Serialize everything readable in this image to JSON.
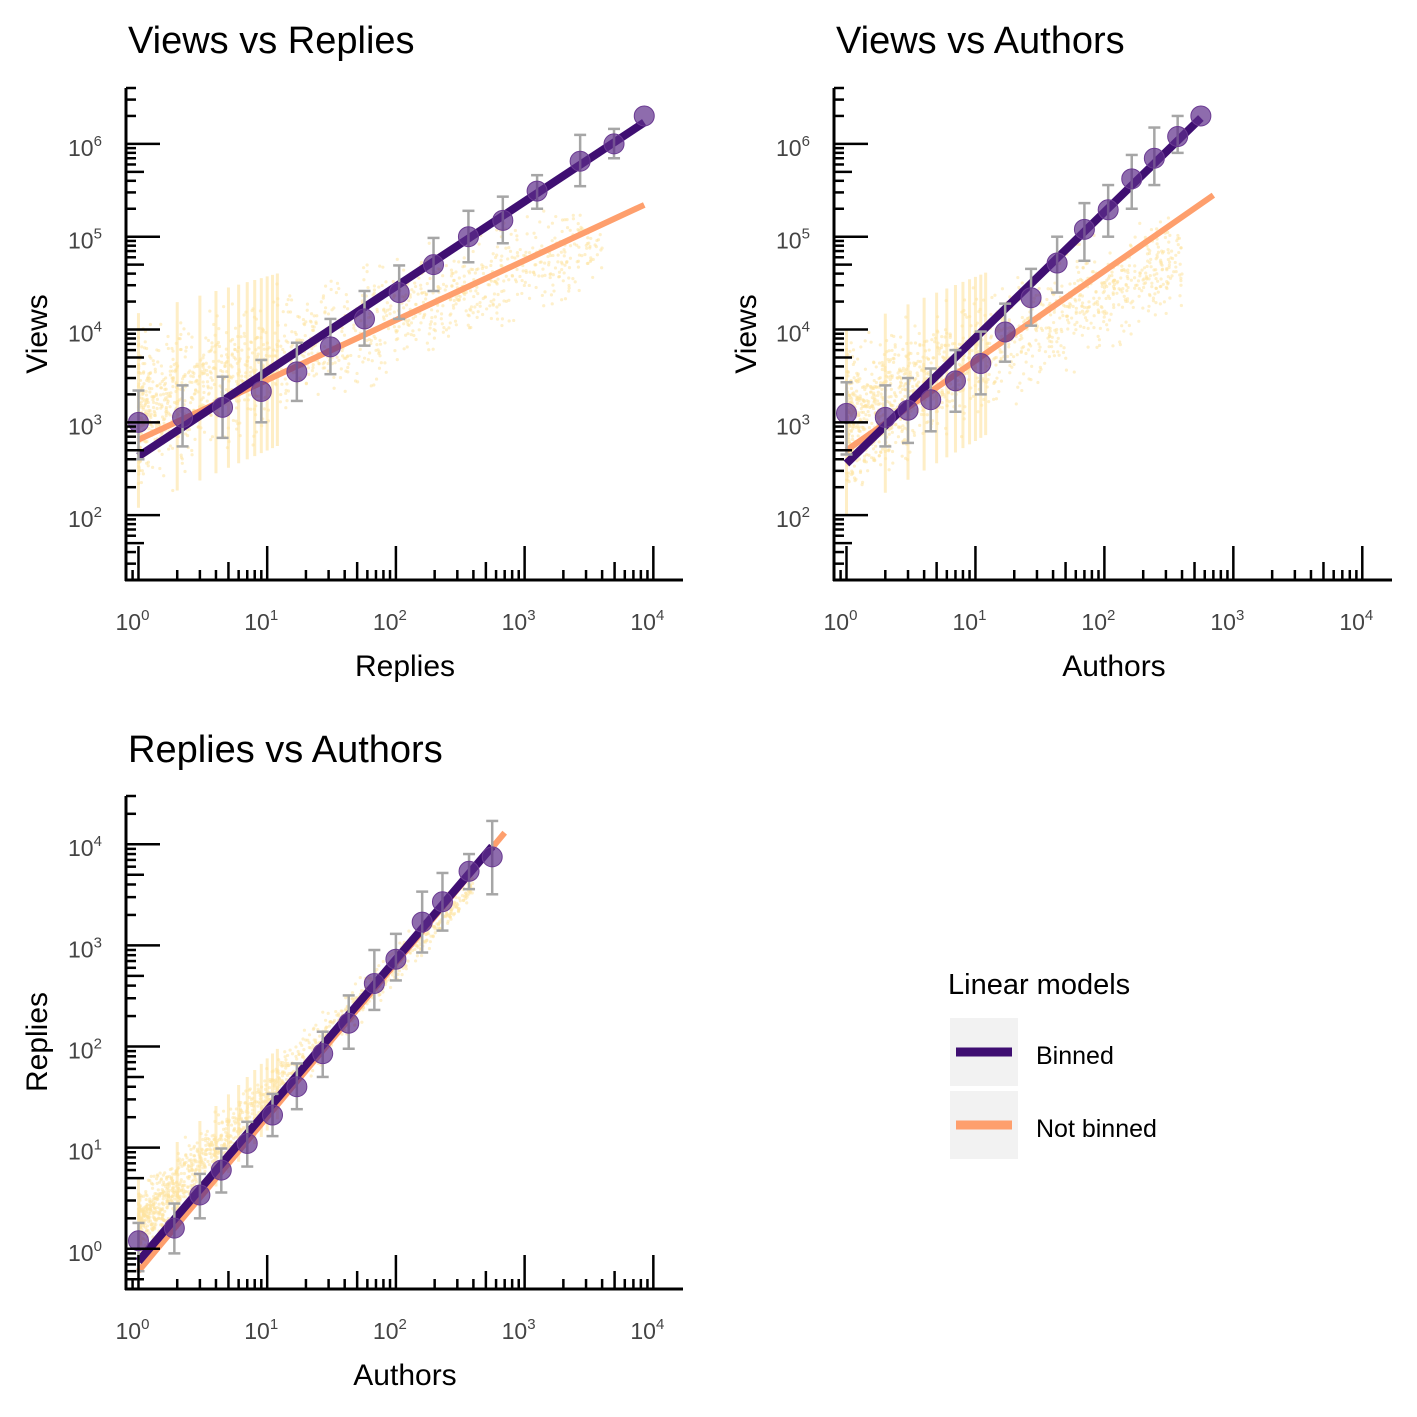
{
  "chart_data": [
    {
      "id": "views-replies",
      "type": "scatter",
      "title": "Views vs Replies",
      "xlabel": "Replies",
      "ylabel": "Views",
      "xscale": "log10",
      "yscale": "log10",
      "xlim": [
        0.8,
        17000
      ],
      "ylim": [
        20,
        4000000
      ],
      "xticks": [
        {
          "base": "10",
          "exp": "0"
        },
        {
          "base": "10",
          "exp": "1"
        },
        {
          "base": "10",
          "exp": "2"
        },
        {
          "base": "10",
          "exp": "3"
        },
        {
          "base": "10",
          "exp": "4"
        }
      ],
      "yticks": [
        {
          "base": "10",
          "exp": "2"
        },
        {
          "base": "10",
          "exp": "3"
        },
        {
          "base": "10",
          "exp": "4"
        },
        {
          "base": "10",
          "exp": "5"
        },
        {
          "base": "10",
          "exp": "6"
        }
      ],
      "binned_points": [
        {
          "x": 1,
          "y": 1000,
          "lo": 400,
          "hi": 2200
        },
        {
          "x": 2.2,
          "y": 1130,
          "lo": 550,
          "hi": 2500
        },
        {
          "x": 4.5,
          "y": 1450,
          "lo": 680,
          "hi": 3100
        },
        {
          "x": 9,
          "y": 2150,
          "lo": 1000,
          "hi": 4700
        },
        {
          "x": 17,
          "y": 3500,
          "lo": 1700,
          "hi": 7200
        },
        {
          "x": 31,
          "y": 6500,
          "lo": 3300,
          "hi": 13000
        },
        {
          "x": 57,
          "y": 13000,
          "lo": 6700,
          "hi": 26000
        },
        {
          "x": 106,
          "y": 25000,
          "lo": 13000,
          "hi": 49000
        },
        {
          "x": 196,
          "y": 50000,
          "lo": 26000,
          "hi": 97000
        },
        {
          "x": 366,
          "y": 100000,
          "lo": 53000,
          "hi": 190000
        },
        {
          "x": 677,
          "y": 150000,
          "lo": 85000,
          "hi": 270000
        },
        {
          "x": 1250,
          "y": 310000,
          "lo": 200000,
          "hi": 460000
        },
        {
          "x": 2700,
          "y": 650000,
          "lo": 350000,
          "hi": 1250000
        },
        {
          "x": 4950,
          "y": 1000000,
          "lo": 700000,
          "hi": 1450000
        },
        {
          "x": 8500,
          "y": 2000000,
          "lo": 2000000,
          "hi": 2000000
        }
      ],
      "series": [
        {
          "name": "Binned",
          "color": "#3f0f72",
          "x": [
            1,
            8500
          ],
          "y": [
            430,
            1700000
          ]
        },
        {
          "name": "Not binned",
          "color": "#fe9f6d",
          "x": [
            1,
            8500
          ],
          "y": [
            650,
            220000
          ]
        }
      ],
      "raw_cloud": {
        "color": "#fde3a0",
        "x": [
          1,
          4000
        ],
        "y_lo": [
          120,
          20000
        ],
        "y_hi": [
          15000,
          400000
        ]
      }
    },
    {
      "id": "views-authors",
      "type": "scatter",
      "title": "Views vs Authors",
      "xlabel": "Authors",
      "ylabel": "Views",
      "xscale": "log10",
      "yscale": "log10",
      "xlim": [
        0.8,
        17000
      ],
      "ylim": [
        20,
        4000000
      ],
      "xticks": [
        {
          "base": "10",
          "exp": "0"
        },
        {
          "base": "10",
          "exp": "1"
        },
        {
          "base": "10",
          "exp": "2"
        },
        {
          "base": "10",
          "exp": "3"
        },
        {
          "base": "10",
          "exp": "4"
        }
      ],
      "yticks": [
        {
          "base": "10",
          "exp": "2"
        },
        {
          "base": "10",
          "exp": "3"
        },
        {
          "base": "10",
          "exp": "4"
        },
        {
          "base": "10",
          "exp": "5"
        },
        {
          "base": "10",
          "exp": "6"
        }
      ],
      "binned_points": [
        {
          "x": 1,
          "y": 1250,
          "lo": 450,
          "hi": 2700
        },
        {
          "x": 2,
          "y": 1130,
          "lo": 550,
          "hi": 2500
        },
        {
          "x": 3,
          "y": 1350,
          "lo": 600,
          "hi": 3000
        },
        {
          "x": 4.5,
          "y": 1750,
          "lo": 800,
          "hi": 3800
        },
        {
          "x": 7,
          "y": 2800,
          "lo": 1300,
          "hi": 6000
        },
        {
          "x": 11,
          "y": 4300,
          "lo": 2000,
          "hi": 9500
        },
        {
          "x": 17,
          "y": 9400,
          "lo": 4500,
          "hi": 19000
        },
        {
          "x": 27,
          "y": 22000,
          "lo": 11000,
          "hi": 45000
        },
        {
          "x": 43,
          "y": 52000,
          "lo": 25000,
          "hi": 100000
        },
        {
          "x": 70,
          "y": 120000,
          "lo": 55000,
          "hi": 230000
        },
        {
          "x": 107,
          "y": 195000,
          "lo": 100000,
          "hi": 360000
        },
        {
          "x": 163,
          "y": 420000,
          "lo": 200000,
          "hi": 760000
        },
        {
          "x": 244,
          "y": 700000,
          "lo": 360000,
          "hi": 1500000
        },
        {
          "x": 370,
          "y": 1200000,
          "lo": 800000,
          "hi": 2000000
        },
        {
          "x": 560,
          "y": 2000000,
          "lo": 2000000,
          "hi": 2000000
        }
      ],
      "series": [
        {
          "name": "Binned",
          "color": "#3f0f72",
          "x": [
            1,
            560
          ],
          "y": [
            360,
            1900000
          ]
        },
        {
          "name": "Not binned",
          "color": "#fe9f6d",
          "x": [
            1,
            700
          ],
          "y": [
            500,
            280000
          ]
        }
      ],
      "raw_cloud": {
        "color": "#fde3a0",
        "x": [
          1,
          400
        ],
        "y_lo": [
          100,
          12000
        ],
        "y_hi": [
          10000,
          300000
        ]
      }
    },
    {
      "id": "replies-authors",
      "type": "scatter",
      "title": "Replies vs Authors",
      "xlabel": "Authors",
      "ylabel": "Replies",
      "xscale": "log10",
      "yscale": "log10",
      "xlim": [
        0.8,
        17000
      ],
      "ylim": [
        0.4,
        30000
      ],
      "xticks": [
        {
          "base": "10",
          "exp": "0"
        },
        {
          "base": "10",
          "exp": "1"
        },
        {
          "base": "10",
          "exp": "2"
        },
        {
          "base": "10",
          "exp": "3"
        },
        {
          "base": "10",
          "exp": "4"
        }
      ],
      "yticks": [
        {
          "base": "10",
          "exp": "0"
        },
        {
          "base": "10",
          "exp": "1"
        },
        {
          "base": "10",
          "exp": "2"
        },
        {
          "base": "10",
          "exp": "3"
        },
        {
          "base": "10",
          "exp": "4"
        }
      ],
      "binned_points": [
        {
          "x": 1,
          "y": 1.2,
          "lo": 0.6,
          "hi": 1.8
        },
        {
          "x": 1.9,
          "y": 1.6,
          "lo": 0.9,
          "hi": 2.8
        },
        {
          "x": 3,
          "y": 3.4,
          "lo": 2.0,
          "hi": 5.5
        },
        {
          "x": 4.4,
          "y": 6.0,
          "lo": 3.6,
          "hi": 9.8
        },
        {
          "x": 7,
          "y": 11,
          "lo": 6.5,
          "hi": 18
        },
        {
          "x": 11,
          "y": 21,
          "lo": 13,
          "hi": 34
        },
        {
          "x": 17,
          "y": 40,
          "lo": 24,
          "hi": 68
        },
        {
          "x": 27,
          "y": 85,
          "lo": 50,
          "hi": 140
        },
        {
          "x": 43,
          "y": 170,
          "lo": 95,
          "hi": 320
        },
        {
          "x": 68,
          "y": 420,
          "lo": 230,
          "hi": 900
        },
        {
          "x": 100,
          "y": 730,
          "lo": 450,
          "hi": 1300
        },
        {
          "x": 160,
          "y": 1700,
          "lo": 850,
          "hi": 3400
        },
        {
          "x": 230,
          "y": 2700,
          "lo": 1400,
          "hi": 5200
        },
        {
          "x": 370,
          "y": 5400,
          "lo": 3600,
          "hi": 8000
        },
        {
          "x": 560,
          "y": 7500,
          "lo": 3200,
          "hi": 17000
        }
      ],
      "series": [
        {
          "name": "Binned",
          "color": "#3f0f72",
          "x": [
            1,
            560
          ],
          "y": [
            0.75,
            9500
          ]
        },
        {
          "name": "Not binned",
          "color": "#fe9f6d",
          "x": [
            1,
            700
          ],
          "y": [
            0.6,
            13000
          ]
        }
      ],
      "raw_cloud": {
        "color": "#fde3a0",
        "x": [
          1,
          400
        ],
        "y_lo": [
          0.6,
          2500
        ],
        "y_hi": [
          5,
          6000
        ]
      }
    }
  ],
  "legend": {
    "title": "Linear models",
    "items": [
      {
        "label": "Binned",
        "color": "#3f0f72"
      },
      {
        "label": "Not binned",
        "color": "#fe9f6d"
      }
    ],
    "key_background": "#f2f2f2"
  },
  "colors": {
    "point_fill": "#5e2d8a",
    "error_bar": "#a6a6a6",
    "axis": "#000000"
  }
}
